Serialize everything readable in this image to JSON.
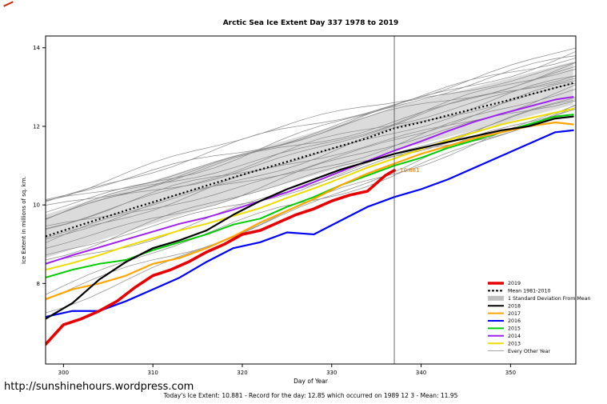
{
  "page": {
    "footer_url": "http://sunshinehours.wordpress.com",
    "caption": "Today's Ice Extent: 10.881  - Record for the day: 12.85 which occurred on 1989 12 3  - Mean: 11.95"
  },
  "chart_data": {
    "type": "line",
    "title": "Arctic Sea Ice Extent Day 337 1978 to 2019",
    "xlabel": "Day of Year",
    "ylabel": "Ice Extent in millions of sq. km.",
    "xlim": [
      298,
      357.3
    ],
    "ylim": [
      5.95,
      14.3
    ],
    "x_ticks": [
      300,
      310,
      320,
      330,
      340,
      350
    ],
    "y_ticks": [
      8,
      10,
      12,
      14
    ],
    "grid": false,
    "legend_position": "bottom-right",
    "marker_day": 337,
    "band_color": "#c3c3c3",
    "annotation": {
      "label": "10.881",
      "day": 337,
      "value": 10.881,
      "color": "#dd7700"
    },
    "x_days": [
      298,
      301,
      304,
      307,
      310,
      313,
      316,
      319,
      322,
      325,
      328,
      331,
      334,
      337,
      340,
      343,
      346,
      349,
      352,
      355,
      357
    ],
    "mean_series": {
      "name": "Mean 1981-2010",
      "color": "#000000",
      "dash": "2,3",
      "width": 2.2,
      "sd": 0.55,
      "y": [
        9.2,
        9.42,
        9.64,
        9.86,
        10.07,
        10.28,
        10.49,
        10.7,
        10.9,
        11.1,
        11.3,
        11.5,
        11.7,
        11.95,
        12.1,
        12.28,
        12.45,
        12.62,
        12.8,
        12.98,
        13.1
      ]
    },
    "series": [
      {
        "name": "2013",
        "color": "#ecdc00",
        "width": 2,
        "y": [
          8.35,
          8.52,
          8.72,
          8.95,
          9.15,
          9.35,
          9.52,
          9.72,
          9.92,
          10.18,
          10.42,
          10.68,
          10.95,
          11.18,
          11.42,
          11.65,
          11.85,
          12.05,
          12.2,
          12.35,
          12.45
        ]
      },
      {
        "name": "2014",
        "color": "#a020f0",
        "width": 2,
        "y": [
          8.5,
          8.72,
          8.92,
          9.12,
          9.32,
          9.52,
          9.68,
          9.88,
          10.1,
          10.32,
          10.58,
          10.85,
          11.12,
          11.38,
          11.62,
          11.88,
          12.12,
          12.32,
          12.5,
          12.68,
          12.75
        ]
      },
      {
        "name": "2015",
        "color": "#00cc00",
        "width": 2,
        "y": [
          8.15,
          8.35,
          8.5,
          8.6,
          8.85,
          9.05,
          9.25,
          9.5,
          9.65,
          9.95,
          10.2,
          10.5,
          10.75,
          11.0,
          11.2,
          11.45,
          11.65,
          11.85,
          12.05,
          12.25,
          12.3
        ]
      },
      {
        "name": "2016",
        "color": "#0000ff",
        "width": 2.2,
        "y": [
          7.15,
          7.3,
          7.3,
          7.55,
          7.85,
          8.15,
          8.55,
          8.9,
          9.05,
          9.3,
          9.25,
          9.6,
          9.95,
          10.2,
          10.4,
          10.65,
          10.95,
          11.25,
          11.55,
          11.85,
          11.9
        ]
      },
      {
        "name": "2017",
        "color": "#ffa500",
        "width": 2.2,
        "y": [
          7.6,
          7.85,
          8.0,
          8.2,
          8.5,
          8.65,
          8.9,
          9.2,
          9.55,
          9.85,
          10.15,
          10.5,
          10.8,
          11.05,
          11.3,
          11.5,
          11.7,
          11.85,
          12.0,
          12.1,
          12.05
        ]
      },
      {
        "name": "2018",
        "color": "#000000",
        "width": 2.2,
        "y": [
          7.1,
          7.5,
          8.1,
          8.55,
          8.9,
          9.1,
          9.35,
          9.75,
          10.1,
          10.4,
          10.65,
          10.9,
          11.1,
          11.3,
          11.45,
          11.6,
          11.75,
          11.9,
          12.0,
          12.2,
          12.25
        ]
      },
      {
        "name": "2019",
        "color": "#e60000",
        "width": 3.6,
        "x": [
          298,
          300,
          302,
          304,
          306,
          308,
          310,
          312,
          314,
          316,
          318,
          320,
          322,
          324,
          326,
          328,
          330,
          332,
          334,
          336,
          337
        ],
        "y": [
          6.45,
          6.95,
          7.1,
          7.3,
          7.55,
          7.9,
          8.2,
          8.35,
          8.55,
          8.8,
          9.0,
          9.25,
          9.35,
          9.55,
          9.75,
          9.9,
          10.1,
          10.25,
          10.35,
          10.75,
          10.88
        ]
      }
    ],
    "other_years": {
      "name": "Every Other Year",
      "color": "#888888",
      "width": 0.7,
      "lines": [
        [
          9.8,
          13.9,
          1
        ],
        [
          10.25,
          14.0,
          2
        ],
        [
          10.05,
          13.75,
          3
        ],
        [
          9.9,
          13.55,
          4
        ],
        [
          9.7,
          13.5,
          5
        ],
        [
          9.6,
          13.3,
          6
        ],
        [
          9.5,
          13.4,
          7
        ],
        [
          9.42,
          13.2,
          8
        ],
        [
          9.3,
          13.12,
          9
        ],
        [
          9.2,
          13.0,
          10
        ],
        [
          9.05,
          12.9,
          11
        ],
        [
          8.9,
          12.82,
          12
        ],
        [
          8.72,
          12.7,
          13
        ],
        [
          8.6,
          12.62,
          14
        ],
        [
          8.45,
          12.5,
          15
        ],
        [
          7.8,
          12.45,
          16
        ],
        [
          7.55,
          12.55,
          17
        ],
        [
          7.35,
          12.62,
          18
        ],
        [
          9.12,
          13.05,
          19
        ],
        [
          9.95,
          13.65,
          20
        ],
        [
          10.15,
          13.85,
          21
        ],
        [
          9.65,
          13.45,
          22
        ]
      ]
    },
    "legend": [
      {
        "label": "2019",
        "color": "#e60000",
        "type": "line-thick"
      },
      {
        "label": "Mean 1981-2010",
        "color": "#000000",
        "type": "line-dashed"
      },
      {
        "label": "1 Standard Deviation From Mean",
        "color": "#bfbfbf",
        "type": "band"
      },
      {
        "label": "2018",
        "color": "#000000",
        "type": "line"
      },
      {
        "label": "2017",
        "color": "#ffa500",
        "type": "line"
      },
      {
        "label": "2016",
        "color": "#0000ff",
        "type": "line"
      },
      {
        "label": "2015",
        "color": "#00cc00",
        "type": "line"
      },
      {
        "label": "2014",
        "color": "#a020f0",
        "type": "line"
      },
      {
        "label": "2013",
        "color": "#ecdc00",
        "type": "line"
      },
      {
        "label": "Every Other Year",
        "color": "#888888",
        "type": "line-thin"
      }
    ]
  }
}
